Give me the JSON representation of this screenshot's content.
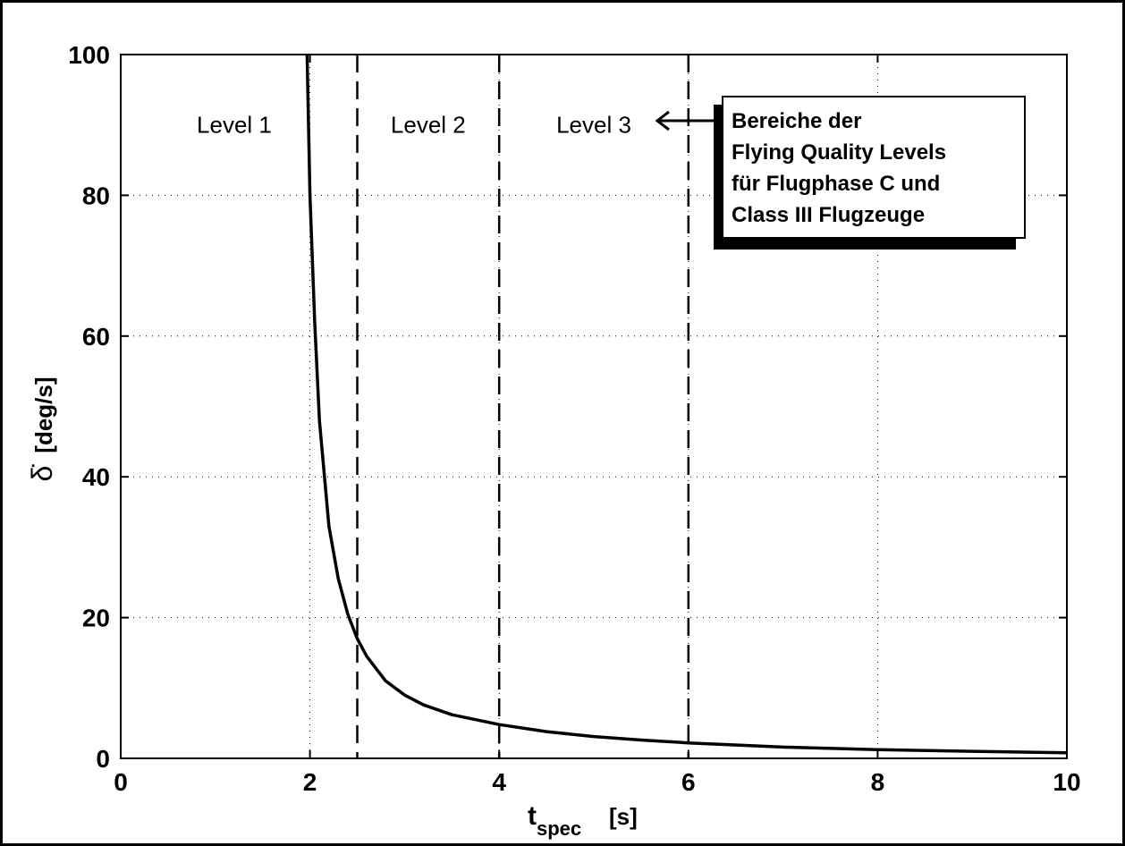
{
  "chart_data": {
    "type": "line",
    "xlabel": {
      "main": "t",
      "sub": "spec",
      "unit": "[s]"
    },
    "ylabel": {
      "symbol": "δ̇",
      "unit": "[deg/s]"
    },
    "xlim": [
      0,
      10
    ],
    "ylim": [
      0,
      100
    ],
    "xticks": [
      0,
      2,
      4,
      6,
      8,
      10
    ],
    "yticks": [
      0,
      20,
      40,
      60,
      80,
      100
    ],
    "xtick_labels": [
      "0",
      "2",
      "4",
      "6",
      "8",
      "10"
    ],
    "ytick_labels": [
      "0",
      "20",
      "40",
      "60",
      "80",
      "100"
    ],
    "grid": true,
    "series": [
      {
        "x": [
          1.97,
          2.0,
          2.05,
          2.1,
          2.2,
          2.3,
          2.4,
          2.5,
          2.6,
          2.8,
          3.0,
          3.2,
          3.5,
          4.0,
          4.5,
          5.0,
          5.5,
          6.0,
          7.0,
          8.0,
          9.0,
          10.0
        ],
        "y": [
          100,
          80,
          62,
          48,
          33,
          25.5,
          20.5,
          17,
          14.5,
          11,
          9,
          7.6,
          6.2,
          4.8,
          3.8,
          3.1,
          2.6,
          2.2,
          1.6,
          1.25,
          1.0,
          0.8
        ]
      }
    ],
    "boundaries": [
      2.5,
      4.0,
      6.0
    ],
    "region_labels": [
      {
        "text": "Level 1",
        "x": 1.2,
        "y": 90
      },
      {
        "text": "Level 2",
        "x": 3.25,
        "y": 90
      },
      {
        "text": "Level 3",
        "x": 5.0,
        "y": 90
      }
    ],
    "annotation": {
      "lines": [
        "Bereiche der",
        "Flying Quality Levels",
        "für Flugphase C und",
        "Class III Flugzeuge"
      ],
      "arrow_target_x": 5.55,
      "arrow_target_y": 90
    }
  }
}
